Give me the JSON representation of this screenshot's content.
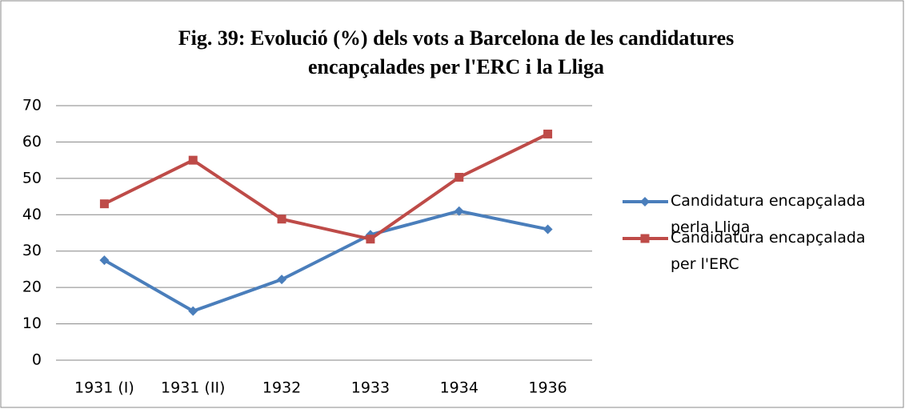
{
  "chart_data": {
    "type": "line",
    "title": "Fig. 39: Evolució (%) dels vots a Barcelona de les candidatures encapçalades per l'ERC i la Lliga",
    "categories": [
      "1931 (I)",
      "1931 (II)",
      "1932",
      "1933",
      "1934",
      "1936"
    ],
    "series": [
      {
        "name": "Candidatura encapçalada perla Lliga",
        "color": "#4a7ebb",
        "marker": "diamond",
        "values": [
          27.5,
          13.5,
          22.2,
          34.5,
          41,
          36
        ]
      },
      {
        "name": "Candidatura encapçalada per l'ERC",
        "color": "#be4b48",
        "marker": "square",
        "values": [
          43,
          55,
          38.8,
          33.3,
          50.3,
          62.2
        ]
      }
    ],
    "ylim": [
      0,
      70
    ],
    "yticks": [
      0,
      10,
      20,
      30,
      40,
      50,
      60,
      70
    ],
    "grid": true,
    "legend": "right"
  }
}
